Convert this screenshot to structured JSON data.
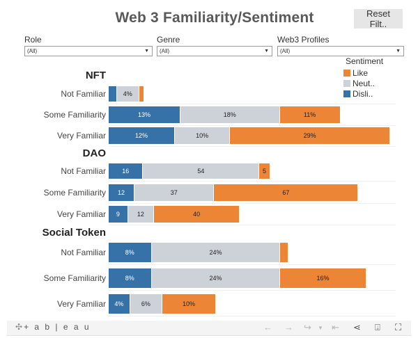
{
  "title": "Web 3 Familiarity/Sentiment",
  "reset_button": "Reset Filt..",
  "filters": [
    {
      "label": "Role",
      "value": "(All)"
    },
    {
      "label": "Genre",
      "value": "(All)"
    },
    {
      "label": "Web3 Profiles",
      "value": "(All)"
    }
  ],
  "legend": {
    "title": "Sentiment",
    "items": [
      {
        "label": "Like",
        "color": "#ed8536"
      },
      {
        "label": "Neut..",
        "color": "#cdd1d8"
      },
      {
        "label": "Disli..",
        "color": "#3672a8"
      }
    ]
  },
  "colors": {
    "dislike": "#3672a8",
    "neutral": "#cdd1d8",
    "like": "#ed8536",
    "dislike_text": "#ffffff",
    "neutral_text": "#222222",
    "like_text": "#222222"
  },
  "chart_data": {
    "type": "bar",
    "orientation": "horizontal",
    "stacked": true,
    "title": "Web 3 Familiarity/Sentiment",
    "legend_position": "top-right",
    "series_order": [
      "Dislike",
      "Neutral",
      "Like"
    ],
    "categories": [
      "Not Familiar",
      "Some Familiarity",
      "Very Familiar"
    ],
    "panels": [
      {
        "name": "NFT",
        "unit": "%",
        "rows": [
          {
            "label": "Not Familiar",
            "dislike": 1.5,
            "neutral": 4,
            "like": 1,
            "labels": [
              "",
              "4%",
              ""
            ]
          },
          {
            "label": "Some Familiarity",
            "dislike": 13,
            "neutral": 18,
            "like": 11,
            "labels": [
              "13%",
              "18%",
              "11%"
            ]
          },
          {
            "label": "Very Familiar",
            "dislike": 12,
            "neutral": 10,
            "like": 29,
            "labels": [
              "12%",
              "10%",
              "29%"
            ]
          }
        ]
      },
      {
        "name": "DAO",
        "unit": "count",
        "rows": [
          {
            "label": "Not Familiar",
            "dislike": 16,
            "neutral": 54,
            "like": 5,
            "labels": [
              "16",
              "54",
              "5"
            ]
          },
          {
            "label": "Some Familiarity",
            "dislike": 12,
            "neutral": 37,
            "like": 67,
            "labels": [
              "12",
              "37",
              "67"
            ]
          },
          {
            "label": "Very Familiar",
            "dislike": 9,
            "neutral": 12,
            "like": 40,
            "labels": [
              "9",
              "12",
              "40"
            ]
          }
        ]
      },
      {
        "name": "Social Token",
        "unit": "%",
        "rows": [
          {
            "label": "Not Familiar",
            "dislike": 8,
            "neutral": 24,
            "like": 1.5,
            "labels": [
              "8%",
              "24%",
              ""
            ]
          },
          {
            "label": "Some Familiarity",
            "dislike": 8,
            "neutral": 24,
            "like": 16,
            "labels": [
              "8%",
              "24%",
              "16%"
            ]
          },
          {
            "label": "Very Familiar",
            "dislike": 4,
            "neutral": 6,
            "like": 10,
            "labels": [
              "4%",
              "6%",
              "10%"
            ]
          }
        ]
      }
    ]
  },
  "toolbar": {
    "logo": "+ a b | e a u",
    "icons": [
      "undo-icon",
      "redo-icon",
      "revert-icon",
      "dropdown-icon",
      "reset-view-icon",
      "share-icon",
      "download-icon",
      "fullscreen-icon"
    ]
  }
}
